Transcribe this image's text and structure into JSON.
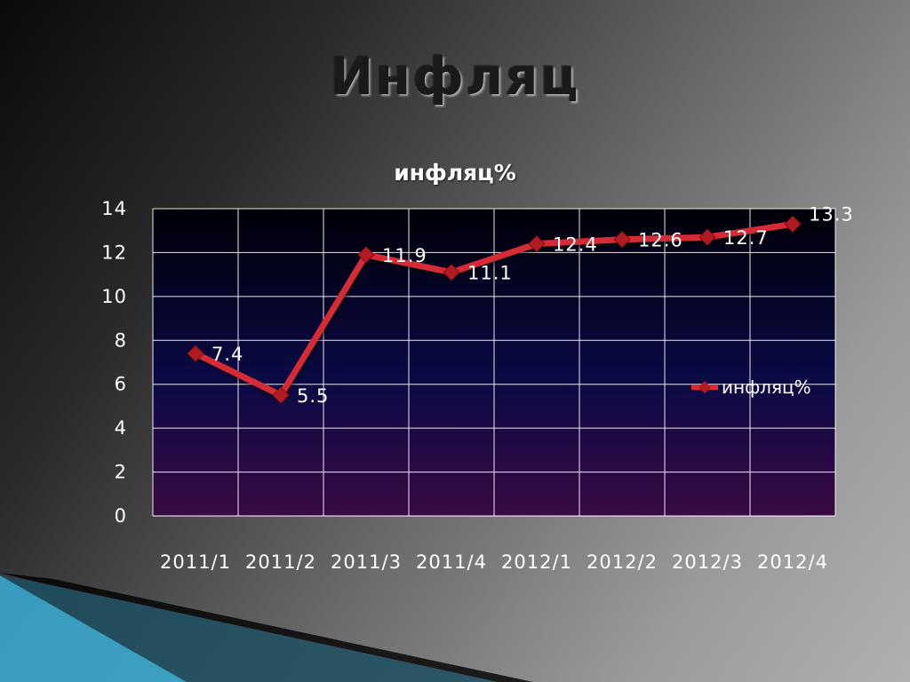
{
  "slide": {
    "title": "Инфляц"
  },
  "colors": {
    "series_line": "#d62b35",
    "series_marker": "#b31b22",
    "plot_top": "#000008",
    "plot_bottom": "#3a0a44",
    "gridline": "#ffffff",
    "text": "#ffffff",
    "accent_band": "#3aa6cc"
  },
  "chart_data": {
    "type": "line",
    "title": "инфляц%",
    "xlabel": "",
    "ylabel": "",
    "categories": [
      "2011/1",
      "2011/2",
      "2011/3",
      "2011/4",
      "2012/1",
      "2012/2",
      "2012/3",
      "2012/4"
    ],
    "series": [
      {
        "name": "инфляц%",
        "values": [
          7.4,
          5.5,
          11.9,
          11.1,
          12.4,
          12.6,
          12.7,
          13.3
        ]
      }
    ],
    "data_labels": [
      "7.4",
      "5.5",
      "11.9",
      "11.1",
      "12.4",
      "12.6",
      "12.7",
      "13.3"
    ],
    "y_ticks": [
      "0",
      "2",
      "4",
      "6",
      "8",
      "10",
      "12",
      "14"
    ],
    "ylim": [
      0,
      14
    ],
    "grid": true,
    "legend_position": "right",
    "marker": "diamond"
  }
}
